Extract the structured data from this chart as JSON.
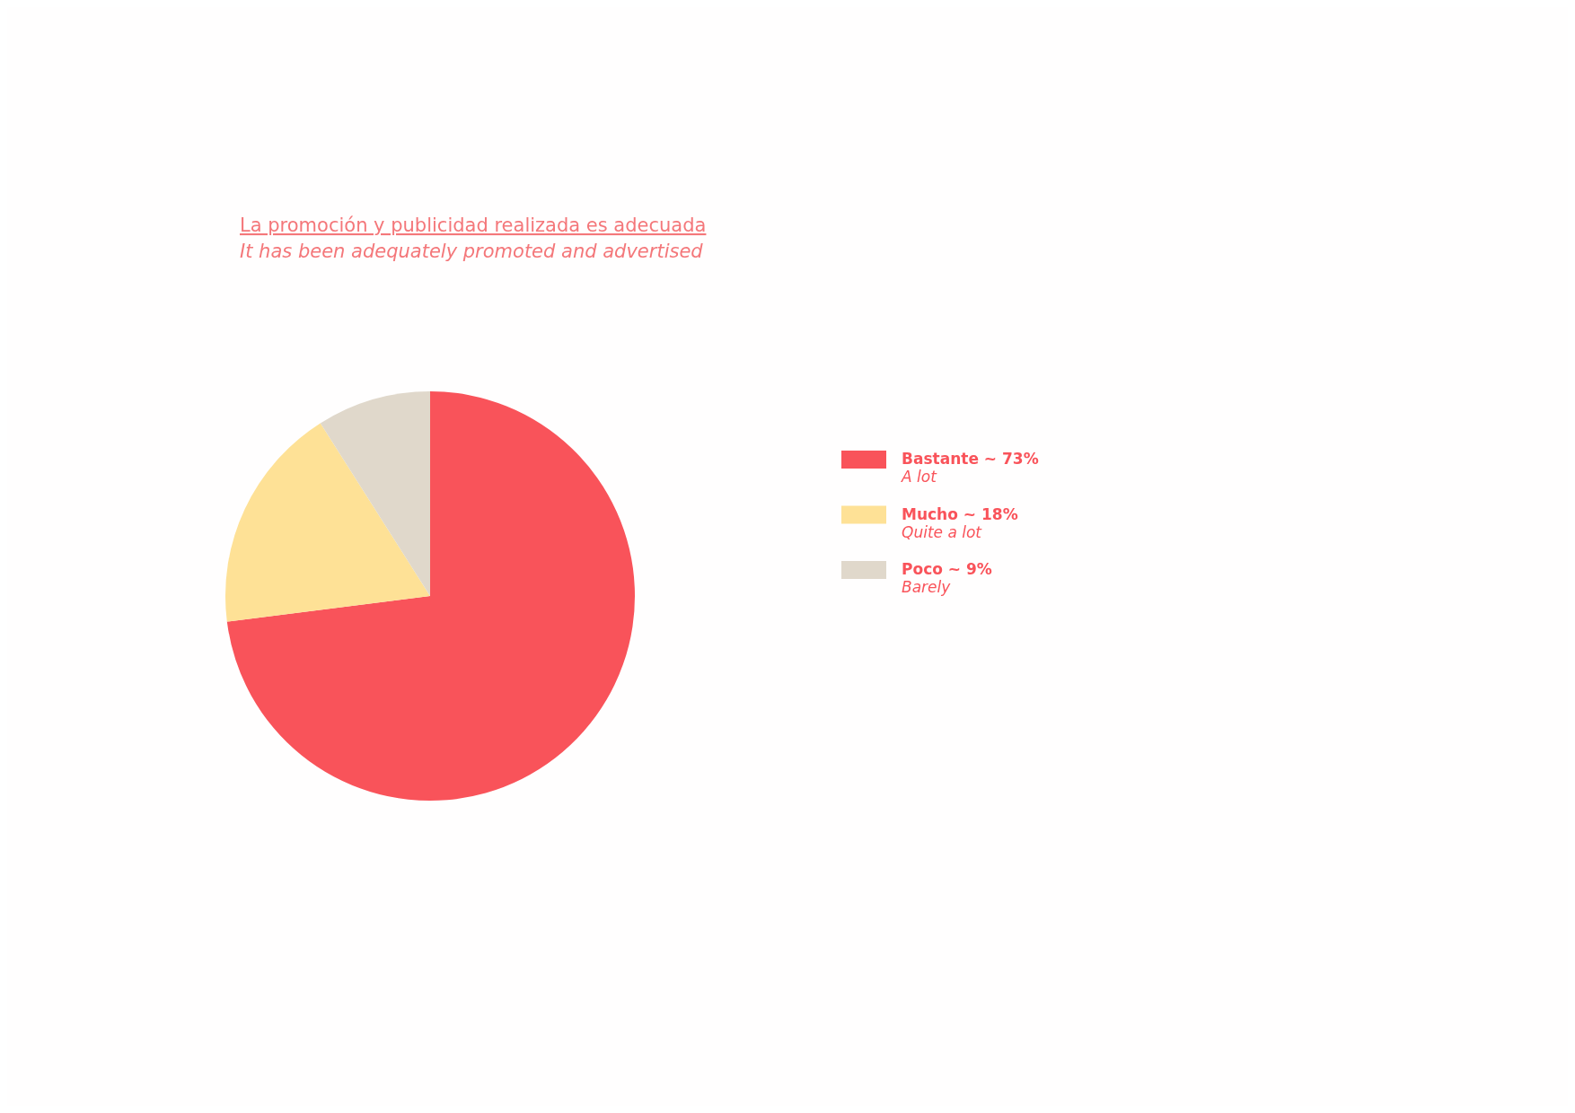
{
  "chart_data": {
    "type": "pie",
    "title": "La promoción y publicidad realizada es adecuada",
    "subtitle": "It has been adequately promoted and advertised",
    "categories": [
      "Bastante",
      "Mucho",
      "Poco"
    ],
    "values": [
      73,
      18,
      9
    ],
    "value_labels": [
      "~ 73%",
      "~ 18%",
      "~ 9%"
    ],
    "colors": [
      "#f9535a",
      "#fee196",
      "#e0d8cb"
    ],
    "annotations": [
      "A lot",
      "Quite a lot",
      "Barely"
    ],
    "legend": "right"
  }
}
